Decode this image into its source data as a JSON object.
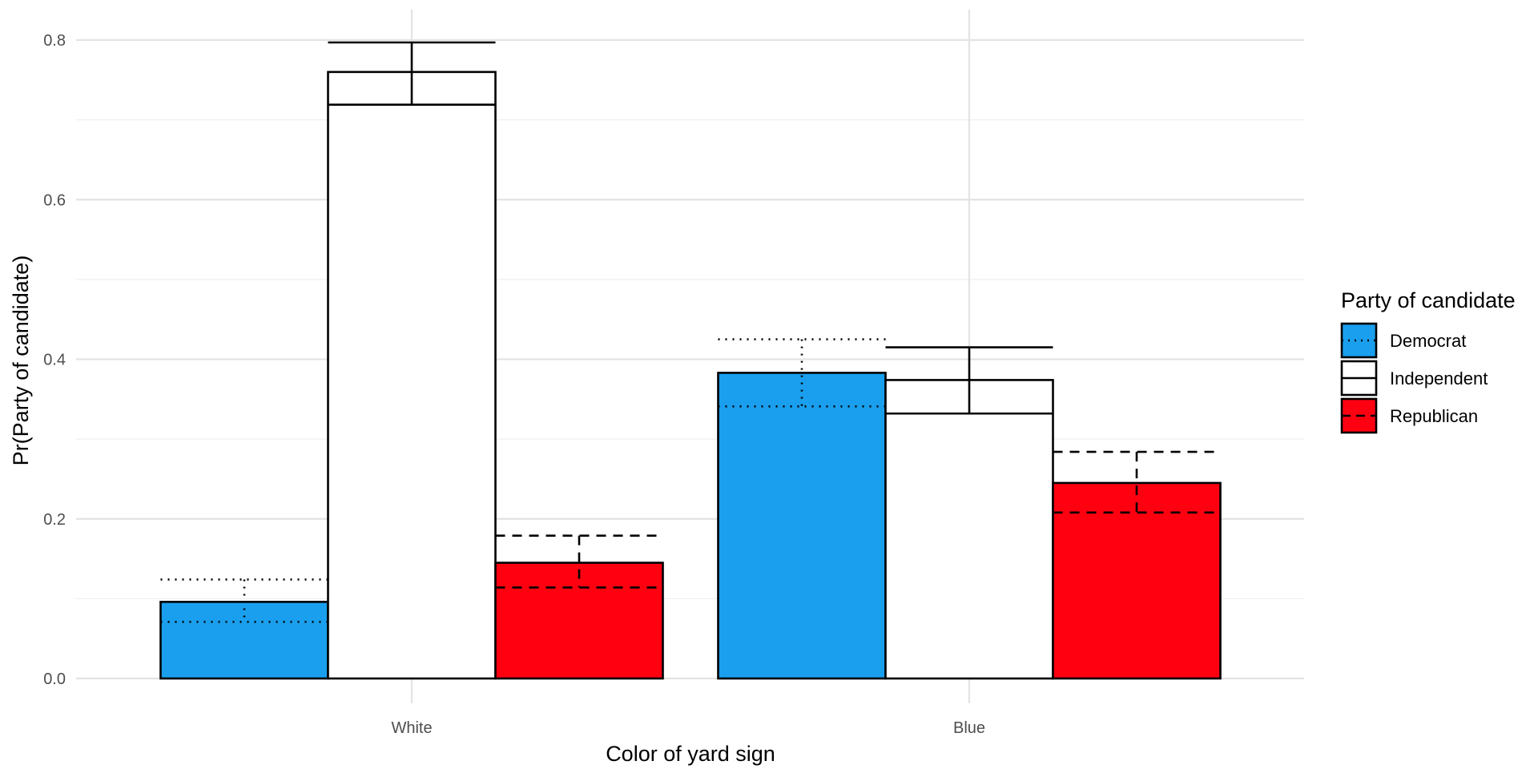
{
  "chart_data": {
    "type": "bar",
    "xlabel": "Color of yard sign",
    "ylabel": "Pr(Party of candidate)",
    "categories": [
      "White",
      "Blue"
    ],
    "ylim": [
      -0.01,
      0.83
    ],
    "yticks": [
      0.0,
      0.2,
      0.4,
      0.6,
      0.8
    ],
    "ytick_labels": [
      "0.0",
      "0.2",
      "0.4",
      "0.6",
      "0.8"
    ],
    "grid": true,
    "legend": {
      "title": "Party of candidate",
      "position": "right"
    },
    "series": [
      {
        "name": "Democrat",
        "color": "#1a9fee",
        "linetype": "dotted",
        "values": [
          0.096,
          0.383
        ],
        "lower": [
          0.071,
          0.341
        ],
        "upper": [
          0.124,
          0.425
        ]
      },
      {
        "name": "Independent",
        "color": "#ffffff",
        "linetype": "solid",
        "values": [
          0.76,
          0.374
        ],
        "lower": [
          0.719,
          0.332
        ],
        "upper": [
          0.797,
          0.415
        ]
      },
      {
        "name": "Republican",
        "color": "#ff0011",
        "linetype": "dashed",
        "values": [
          0.145,
          0.245
        ],
        "lower": [
          0.114,
          0.208
        ],
        "upper": [
          0.179,
          0.284
        ]
      }
    ]
  }
}
